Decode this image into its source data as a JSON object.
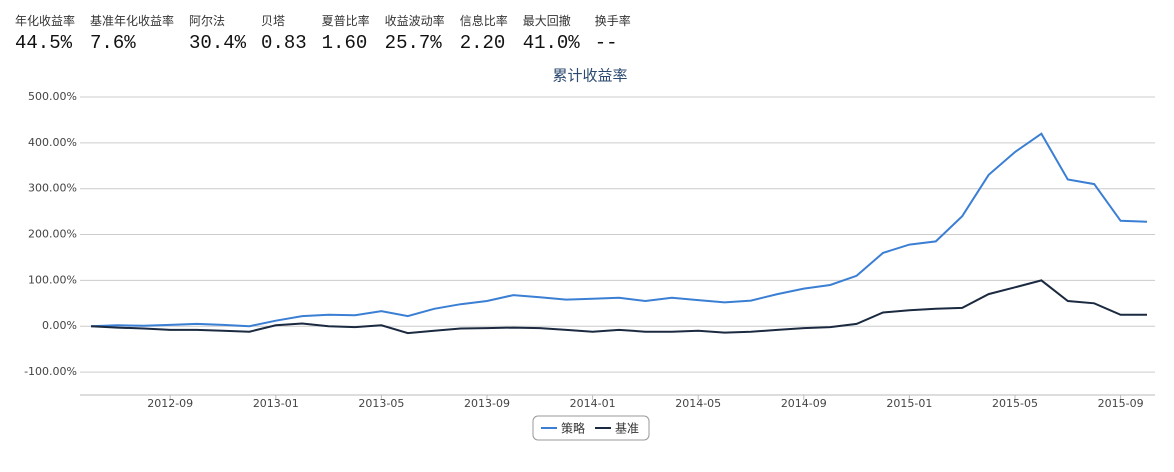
{
  "stats": [
    {
      "label": "年化收益率",
      "value": "44.5%"
    },
    {
      "label": "基准年化收益率",
      "value": "7.6%"
    },
    {
      "label": "阿尔法",
      "value": "30.4%"
    },
    {
      "label": "贝塔",
      "value": "0.83"
    },
    {
      "label": "夏普比率",
      "value": "1.60"
    },
    {
      "label": "收益波动率",
      "value": "25.7%"
    },
    {
      "label": "信息比率",
      "value": "2.20"
    },
    {
      "label": "最大回撤",
      "value": "41.0%"
    },
    {
      "label": "换手率",
      "value": "--"
    }
  ],
  "chart_data": {
    "type": "line",
    "title": "累计收益率",
    "x": [
      "2012-06",
      "2012-07",
      "2012-08",
      "2012-09",
      "2012-10",
      "2012-11",
      "2012-12",
      "2013-01",
      "2013-02",
      "2013-03",
      "2013-04",
      "2013-05",
      "2013-06",
      "2013-07",
      "2013-08",
      "2013-09",
      "2013-10",
      "2013-11",
      "2013-12",
      "2014-01",
      "2014-02",
      "2014-03",
      "2014-04",
      "2014-05",
      "2014-06",
      "2014-07",
      "2014-08",
      "2014-09",
      "2014-10",
      "2014-11",
      "2014-12",
      "2015-01",
      "2015-02",
      "2015-03",
      "2015-04",
      "2015-05",
      "2015-06",
      "2015-07",
      "2015-08",
      "2015-09",
      "2015-10"
    ],
    "series": [
      {
        "name": "策略",
        "color": "#3b7fd4",
        "values": [
          0,
          2,
          1,
          3,
          5,
          3,
          0,
          12,
          22,
          25,
          24,
          33,
          22,
          38,
          48,
          55,
          68,
          63,
          58,
          60,
          62,
          55,
          62,
          57,
          52,
          56,
          70,
          82,
          90,
          110,
          160,
          178,
          185,
          240,
          330,
          380,
          420,
          320,
          310,
          230,
          228
        ]
      },
      {
        "name": "基准",
        "color": "#1b2a40",
        "values": [
          0,
          -3,
          -5,
          -8,
          -8,
          -10,
          -12,
          2,
          6,
          0,
          -2,
          2,
          -15,
          -10,
          -5,
          -4,
          -3,
          -4,
          -8,
          -12,
          -8,
          -12,
          -12,
          -10,
          -14,
          -12,
          -8,
          -4,
          -2,
          5,
          30,
          35,
          38,
          40,
          70,
          85,
          100,
          55,
          50,
          25,
          25
        ]
      }
    ],
    "xlim": [
      "2012-06",
      "2015-10"
    ],
    "xticks": [
      "2012-09",
      "2013-01",
      "2013-05",
      "2013-09",
      "2014-01",
      "2014-05",
      "2014-09",
      "2015-01",
      "2015-05",
      "2015-09"
    ],
    "ylim": [
      -150,
      500
    ],
    "yticks": [
      {
        "value": -100,
        "label": "-100.00%"
      },
      {
        "value": 0,
        "label": "0.00%"
      },
      {
        "value": 100,
        "label": "100.00%"
      },
      {
        "value": 200,
        "label": "200.00%"
      },
      {
        "value": 300,
        "label": "300.00%"
      },
      {
        "value": 400,
        "label": "400.00%"
      },
      {
        "value": 500,
        "label": "500.00%"
      }
    ],
    "grid": true,
    "legend": "bottom"
  }
}
